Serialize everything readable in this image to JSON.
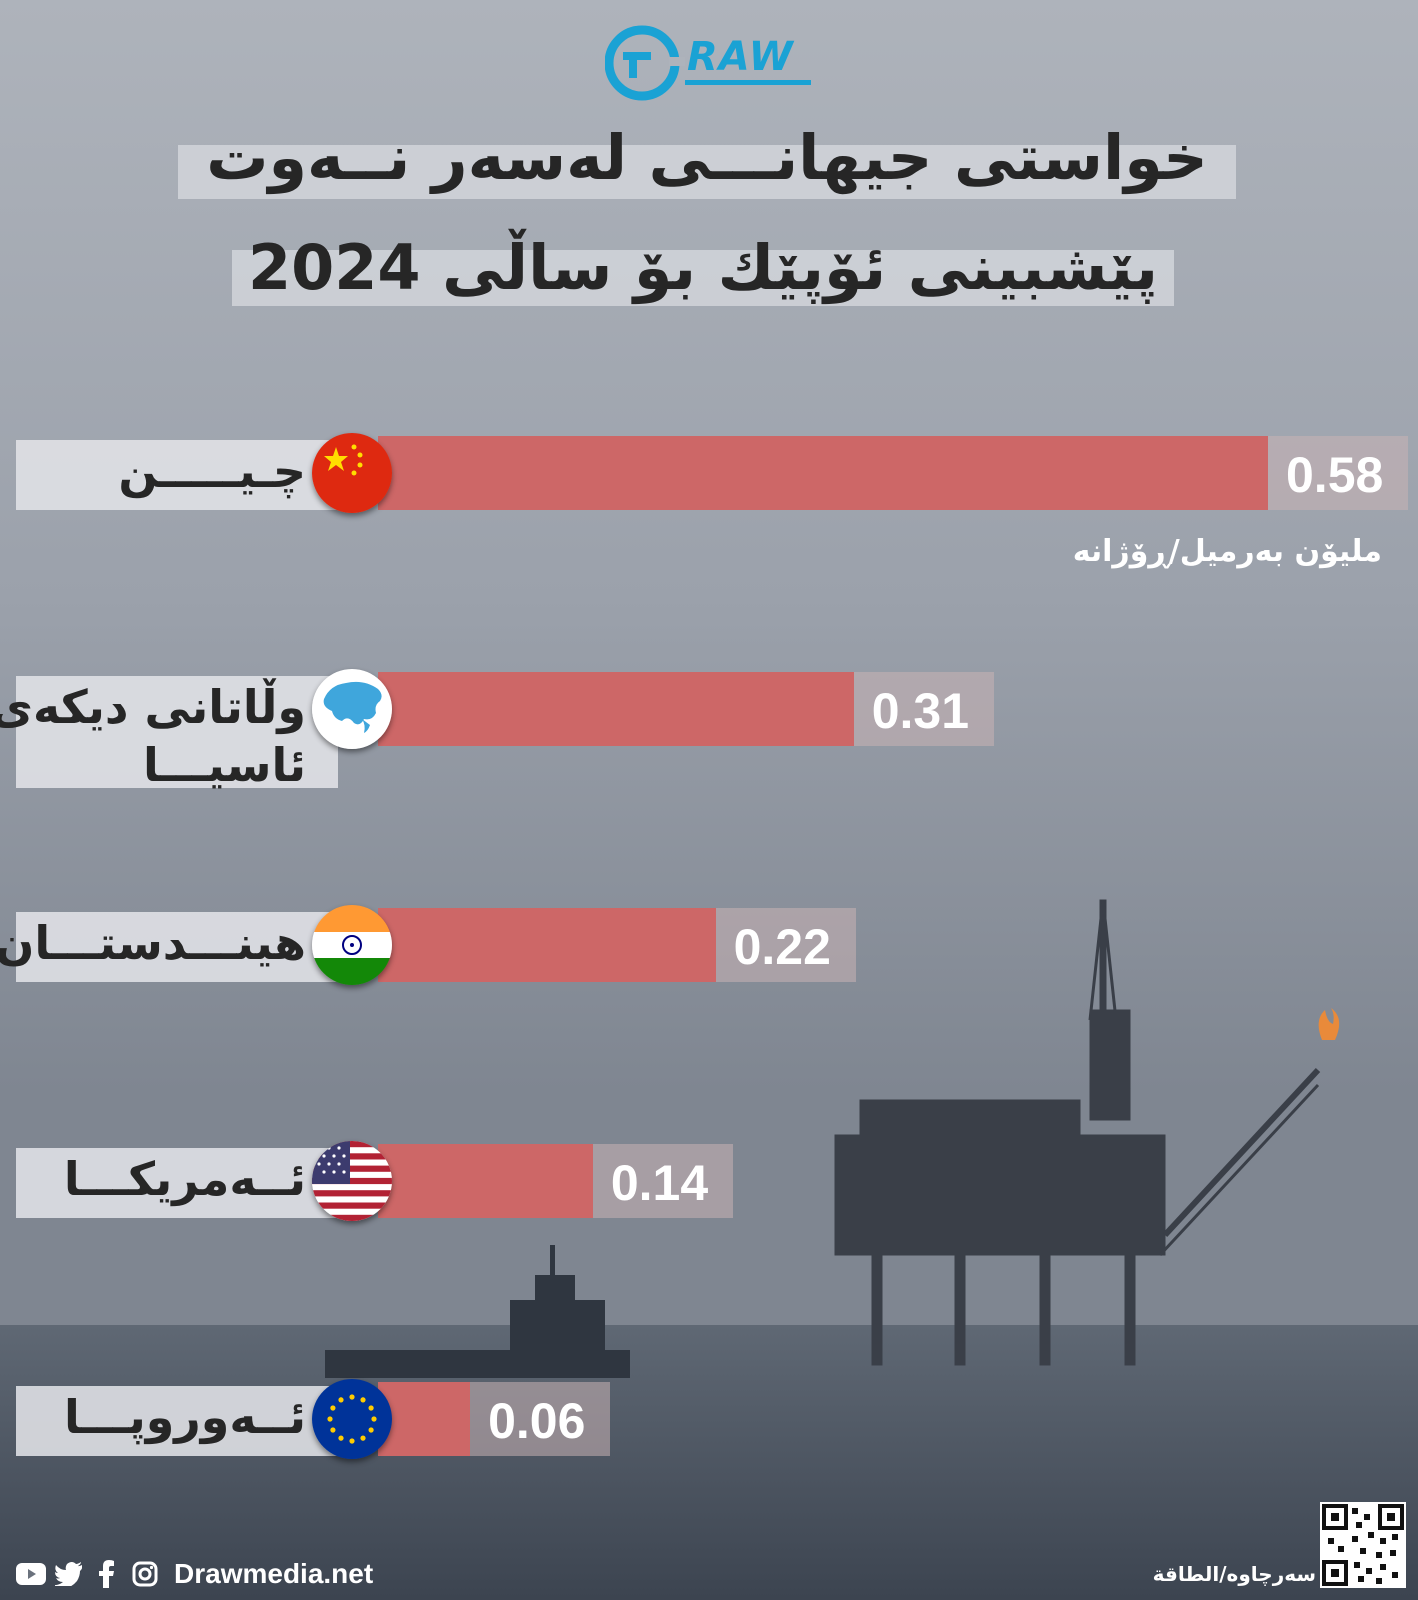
{
  "logo": {
    "text": "RAW",
    "letter": "D"
  },
  "title": {
    "line1": "خواستی جیهانـــی لەسەر نــەوت",
    "line2": "پێشبینی ئۆپێك بۆ ساڵی 2024"
  },
  "chart_data": {
    "type": "bar",
    "orientation": "horizontal",
    "unit_label": "مليۆن بەرميل/ڕۆژانە",
    "xlim": [
      0,
      0.58
    ],
    "categories": [
      "چـيـــــن",
      "وڵاتانی دیکەی ئاسیـــا",
      "هینـــدستـــان",
      "ئــەمریکـــا",
      "ئــەوروپـــا"
    ],
    "category_lines": [
      [
        "چـيـــــن"
      ],
      [
        "وڵاتانی دیکەی",
        "ئاسیـــا"
      ],
      [
        "هینـــدستـــان"
      ],
      [
        "ئــەمریکـــا"
      ],
      [
        "ئــەوروپـــا"
      ]
    ],
    "values": [
      0.58,
      0.31,
      0.22,
      0.14,
      0.06
    ],
    "value_labels": [
      "0.58",
      "0.31",
      "0.22",
      "0.14",
      "0.06"
    ],
    "flags": [
      "china-flag-icon",
      "asia-map-icon",
      "india-flag-icon",
      "usa-flag-icon",
      "eu-flag-icon"
    ],
    "bar_color": "#cd6767"
  },
  "footer": {
    "website": "Drawmedia.net",
    "source": "سەرچاوە/الطاقة",
    "social_icons": [
      "youtube-icon",
      "twitter-icon",
      "facebook-icon",
      "instagram-icon"
    ]
  },
  "colors": {
    "accent": "#1aa2d4",
    "bar": "#cd6767",
    "title_text": "#262626"
  }
}
